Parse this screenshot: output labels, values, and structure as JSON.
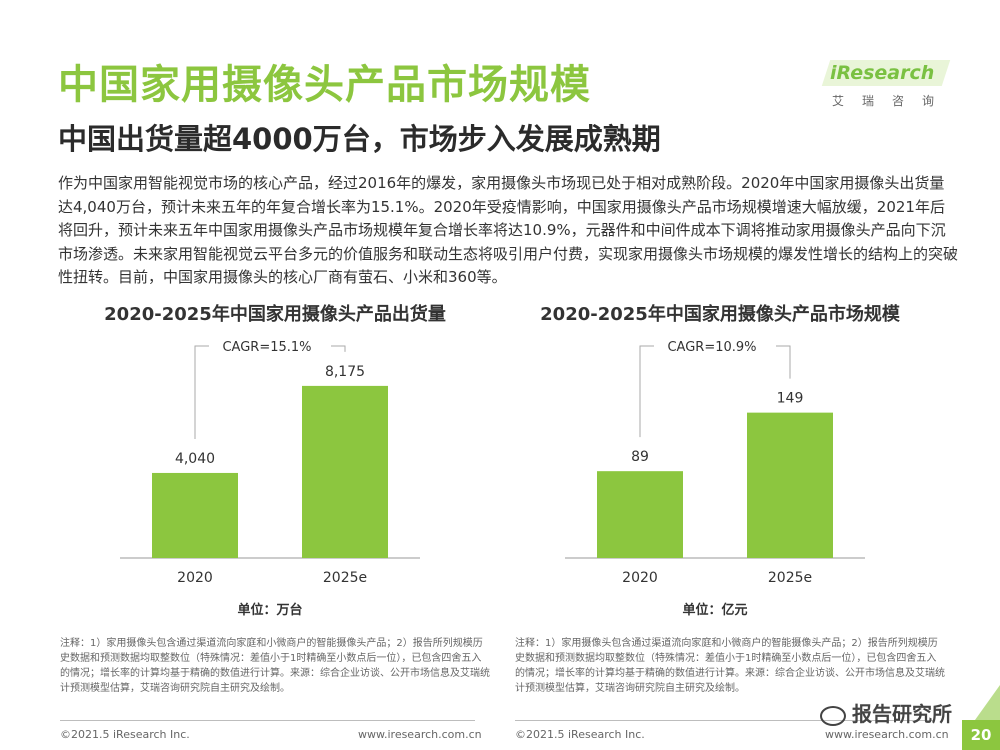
{
  "title": "中国家用摄像头产品市场规模",
  "subtitle": "中国出货量超4000万台，市场步入发展成熟期",
  "logo": {
    "wordmark": "iResearch",
    "cn": "艾瑞咨询"
  },
  "body_text": "作为中国家用智能视觉市场的核心产品，经过2016年的爆发，家用摄像头市场现已处于相对成熟阶段。2020年中国家用摄像头出货量达4,040万台，预计未来五年的年复合增长率为15.1%。2020年受疫情影响，中国家用摄像头产品市场规模增速大幅放缓，2021年后将回升，预计未来五年中国家用摄像头产品市场规模年复合增长率将达10.9%，元器件和中间件成本下调将推动家用摄像头产品向下沉市场渗透。未来家用智能视觉云平台多元的价值服务和联动生态将吸引用户付费，实现家用摄像头市场规模的爆发性增长的结构上的突破性扭转。目前，中国家用摄像头的核心厂商有萤石、小米和360等。",
  "chart_data": [
    {
      "type": "bar",
      "title": "2020-2025年中国家用摄像头产品出货量",
      "categories": [
        "2020",
        "2025e"
      ],
      "values": [
        4040,
        8175
      ],
      "value_labels": [
        "4,040",
        "8,175"
      ],
      "cagr_label": "CAGR=15.1%",
      "unit_label": "单位：万台",
      "ylim": [
        0,
        9500
      ],
      "bar_color": "#8cc63f"
    },
    {
      "type": "bar",
      "title": "2020-2025年中国家用摄像头产品市场规模",
      "categories": [
        "2020",
        "2025e"
      ],
      "values": [
        89,
        149
      ],
      "value_labels": [
        "89",
        "149"
      ],
      "cagr_label": "CAGR=10.9%",
      "unit_label": "单位：亿元",
      "ylim": [
        0,
        205
      ],
      "bar_color": "#8cc63f"
    }
  ],
  "notes": {
    "left": "注释：1）家用摄像头包含通过渠道流向家庭和小微商户的智能摄像头产品；2）报告所列规模历史数据和预测数据均取整数位（特殊情况：差值小于1时精确至小数点后一位），已包含四舍五入的情况；增长率的计算均基于精确的数值进行计算。来源：综合企业访谈、公开市场信息及艾瑞统计预测模型估算，艾瑞咨询研究院自主研究及绘制。",
    "right": "注释：1）家用摄像头包含通过渠道流向家庭和小微商户的智能摄像头产品；2）报告所列规模历史数据和预测数据均取整数位（特殊情况：差值小于1时精确至小数点后一位），已包含四舍五入的情况；增长率的计算均基于精确的数值进行计算。来源：综合企业访谈、公开市场信息及艾瑞统计预测模型估算，艾瑞咨询研究院自主研究及绘制。"
  },
  "footer": {
    "copyright": "©2021.5 iResearch Inc.",
    "url": "www.iresearch.com.cn",
    "page": "20",
    "watermark": "报告研究所"
  },
  "colors": {
    "accent": "#8cc63f",
    "text": "#333333"
  }
}
